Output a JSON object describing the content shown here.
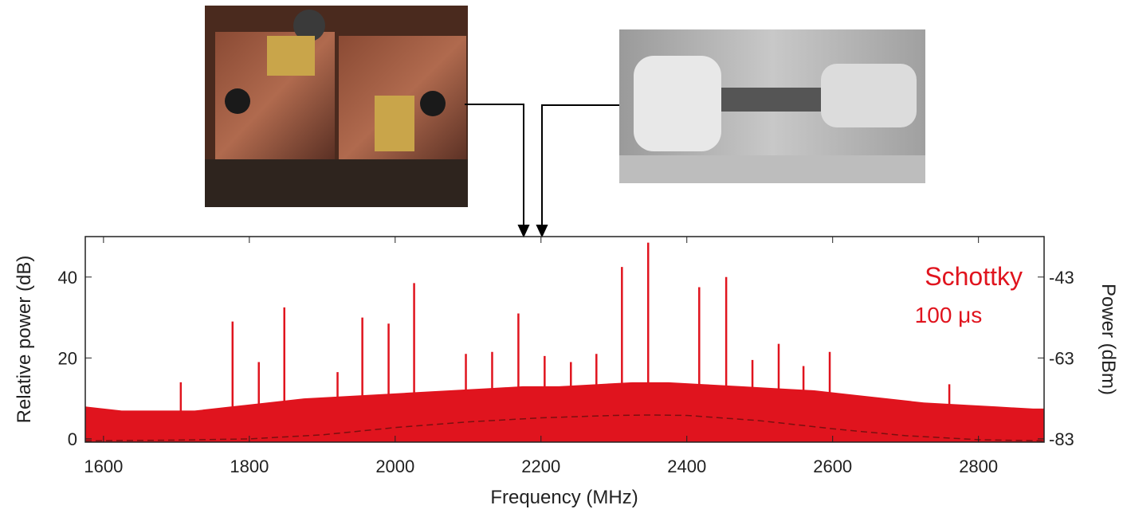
{
  "chart_data": {
    "type": "spectrum",
    "xlabel": "Frequency (MHz)",
    "ylabel": "Relative power (dB)",
    "y2label": "Power (dBm)",
    "annotations": [
      "Schottky",
      "100 μs"
    ],
    "annotation_color": "#e0141e",
    "xlim": [
      1575,
      2890
    ],
    "ylim": [
      -0.8,
      50
    ],
    "y2lim": [
      -83.8,
      -33
    ],
    "xticks": [
      1600,
      1800,
      2000,
      2200,
      2400,
      2600,
      2800
    ],
    "yticks": [
      0,
      20,
      40
    ],
    "y2ticks": [
      -83,
      -63,
      -43
    ],
    "series": [
      {
        "color": "#e0141e",
        "kind": "area",
        "x": [
          1575,
          1625,
          1675,
          1725,
          1775,
          1825,
          1875,
          1925,
          1975,
          2025,
          2075,
          2125,
          2175,
          2225,
          2275,
          2325,
          2375,
          2425,
          2475,
          2525,
          2575,
          2625,
          2675,
          2725,
          2775,
          2825,
          2875,
          2890
        ],
        "values": [
          8,
          7,
          7,
          7,
          8,
          9,
          10,
          10.5,
          11,
          11.5,
          12,
          12.5,
          13,
          13,
          13.5,
          14,
          14,
          13.5,
          13,
          12.5,
          12,
          11,
          10,
          9,
          8.5,
          8,
          7.5,
          7.5
        ]
      },
      {
        "color": "#e0141e",
        "kind": "peaks",
        "x": [
          1706,
          1777,
          1813,
          1848,
          1921,
          1955,
          1991,
          2026,
          2097,
          2133,
          2169,
          2205,
          2241,
          2276,
          2311,
          2347,
          2417,
          2454,
          2490,
          2526,
          2560,
          2596,
          2760
        ],
        "values": [
          14,
          29,
          19,
          32.5,
          16.5,
          30,
          28.5,
          38.5,
          21,
          21.5,
          31,
          20.5,
          19,
          21,
          42.5,
          48.5,
          37.5,
          40,
          19.5,
          23.5,
          18,
          21.5,
          13.5
        ]
      },
      {
        "color": "#7a1010",
        "kind": "dashed",
        "x": [
          1575,
          1700,
          1800,
          1900,
          2000,
          2100,
          2200,
          2300,
          2350,
          2400,
          2500,
          2600,
          2700,
          2800,
          2890
        ],
        "values": [
          -0.5,
          -0.3,
          0,
          1,
          2.8,
          4.2,
          5.2,
          5.8,
          5.9,
          5.8,
          4.5,
          2.5,
          0.8,
          -0.2,
          -0.5
        ]
      }
    ]
  }
}
